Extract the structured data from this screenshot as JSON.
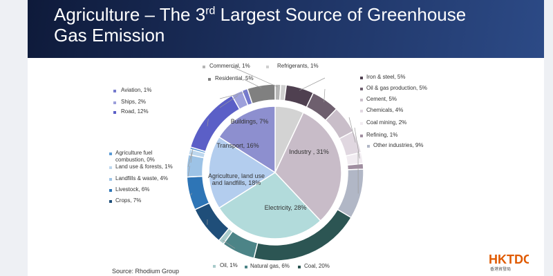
{
  "title": {
    "pre": "Agriculture – The 3",
    "sup": "rd",
    "post": " Largest Source of Greenhouse",
    "line2": "Gas Emission"
  },
  "source": "Source: Rhodium Group",
  "logo": {
    "text": "HKTDC",
    "subtitle": "香港貿發局",
    "color": "#e05a00"
  },
  "chart_data": {
    "type": "pie",
    "subtype": "nested-donut",
    "inner": [
      {
        "label": "Buildings, 7%",
        "value": 7,
        "color": "#d3d3d3"
      },
      {
        "label": "Industry , 31%",
        "value": 31,
        "color": "#c8bcc8"
      },
      {
        "label": "Electricity, 28%",
        "value": 28,
        "color": "#b2dbdb"
      },
      {
        "label": "Agriculture, land use and landfills, 18%",
        "value": 18,
        "color": "#b3cdee"
      },
      {
        "label": "Transport, 16%",
        "value": 16,
        "color": "#8d8fcf"
      }
    ],
    "outer": [
      {
        "label": "Commercial, 1%",
        "value": 1,
        "color": "#b5b5b5"
      },
      {
        "label": "Refrigerants, 1%",
        "value": 1,
        "color": "#cfcfcf"
      },
      {
        "label": "Iron & steel, 5%",
        "value": 5,
        "color": "#4f4050"
      },
      {
        "label": "Oil & gas production, 5%",
        "value": 5,
        "color": "#6e5f6e"
      },
      {
        "label": "Cement, 5%",
        "value": 5,
        "color": "#c9bec9"
      },
      {
        "label": "Chemicals, 4%",
        "value": 4,
        "color": "#e0d7e0"
      },
      {
        "label": "Coal mining, 2%",
        "value": 2,
        "color": "#f1ecf1"
      },
      {
        "label": "Refining, 1%",
        "value": 1,
        "color": "#a08ea0"
      },
      {
        "label": "Other industries, 9%",
        "value": 9,
        "color": "#b1b7c6"
      },
      {
        "label": "Coal, 20%",
        "value": 20,
        "color": "#2c5553"
      },
      {
        "label": "Natural gas, 6%",
        "value": 6,
        "color": "#4c8487"
      },
      {
        "label": "Oil, 1%",
        "value": 1,
        "color": "#a9cbcb"
      },
      {
        "label": "Crops, 7%",
        "value": 7,
        "color": "#1f4e79"
      },
      {
        "label": "Livestock, 6%",
        "value": 6,
        "color": "#2e75b6"
      },
      {
        "label": "Landfills & waste, 4%",
        "value": 4,
        "color": "#9dc3e6"
      },
      {
        "label": "Land use & forests, 1%",
        "value": 1,
        "color": "#bdd7ee"
      },
      {
        "label": "Agriculture fuel combustion, 0%",
        "value": 0.4,
        "color": "#5b9bd5"
      },
      {
        "label": "Road, 12%",
        "value": 12,
        "color": "#5b5fc7"
      },
      {
        "label": "Ships, 2%",
        "value": 2,
        "color": "#9da0db"
      },
      {
        "label": "Aviation, 1%",
        "value": 1,
        "color": "#7479cd"
      },
      {
        "label": "Residential, 5%",
        "value": 5,
        "color": "#808080"
      }
    ]
  }
}
